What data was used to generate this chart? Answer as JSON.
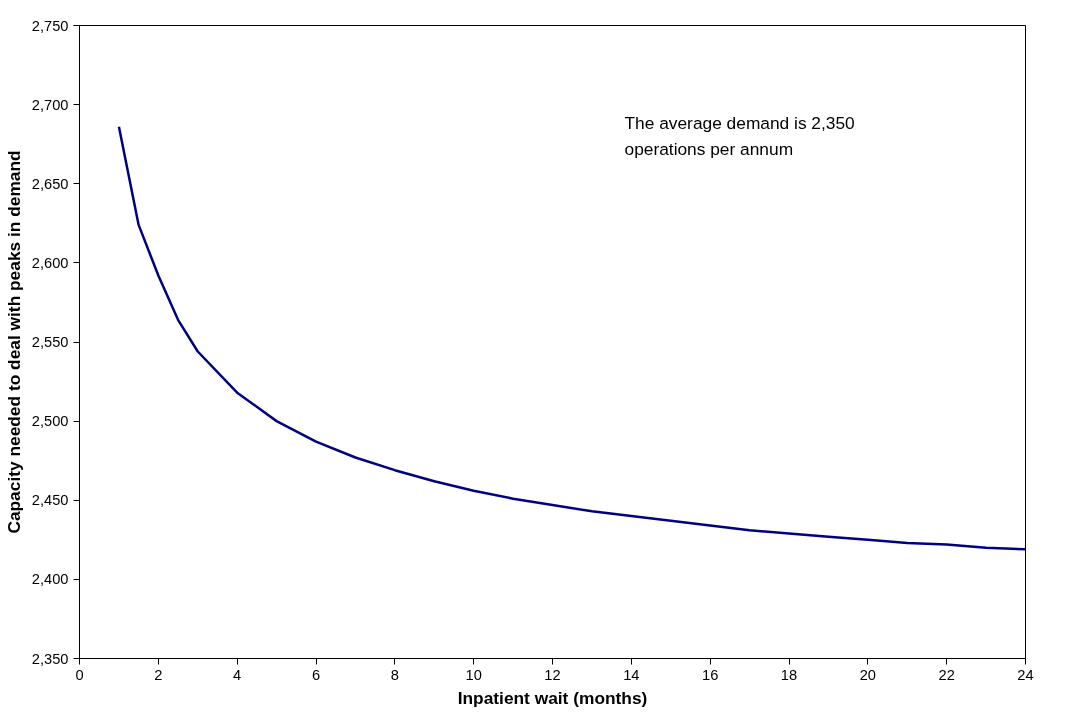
{
  "chart_data": {
    "type": "line",
    "xlabel": "Inpatient wait (months)",
    "ylabel": "Capacity needed to deal with peaks in demand",
    "annotations": [
      "The average demand is 2,350\noperations per annum"
    ],
    "series": [
      {
        "color": "#000080",
        "x": [
          1,
          1.5,
          2,
          2.5,
          3,
          4,
          5,
          6,
          7,
          8,
          9,
          10,
          11,
          12,
          13,
          14,
          15,
          16,
          17,
          18,
          19,
          20,
          21,
          22,
          23,
          24
        ],
        "values": [
          2686,
          2624,
          2592,
          2564,
          2544,
          2518,
          2500,
          2487,
          2477,
          2469,
          2462,
          2456,
          2451,
          2447,
          2443,
          2440,
          2437,
          2434,
          2431,
          2429,
          2427,
          2425,
          2423,
          2422,
          2420,
          2419
        ]
      }
    ],
    "xlim": [
      0,
      24
    ],
    "xticks": [
      0,
      2,
      4,
      6,
      8,
      10,
      12,
      14,
      16,
      18,
      20,
      22,
      24
    ],
    "ylim": [
      2350,
      2750
    ],
    "yticks": [
      {
        "value": 2350,
        "label": "2,350"
      },
      {
        "value": 2400,
        "label": "2,400"
      },
      {
        "value": 2450,
        "label": "2,450"
      },
      {
        "value": 2500,
        "label": "2,500"
      },
      {
        "value": 2550,
        "label": "2,550"
      },
      {
        "value": 2600,
        "label": "2,600"
      },
      {
        "value": 2650,
        "label": "2,650"
      },
      {
        "value": 2700,
        "label": "2,700"
      },
      {
        "value": 2750,
        "label": "2,750"
      }
    ],
    "grid": false,
    "marker": "none",
    "line_style": "solid"
  }
}
